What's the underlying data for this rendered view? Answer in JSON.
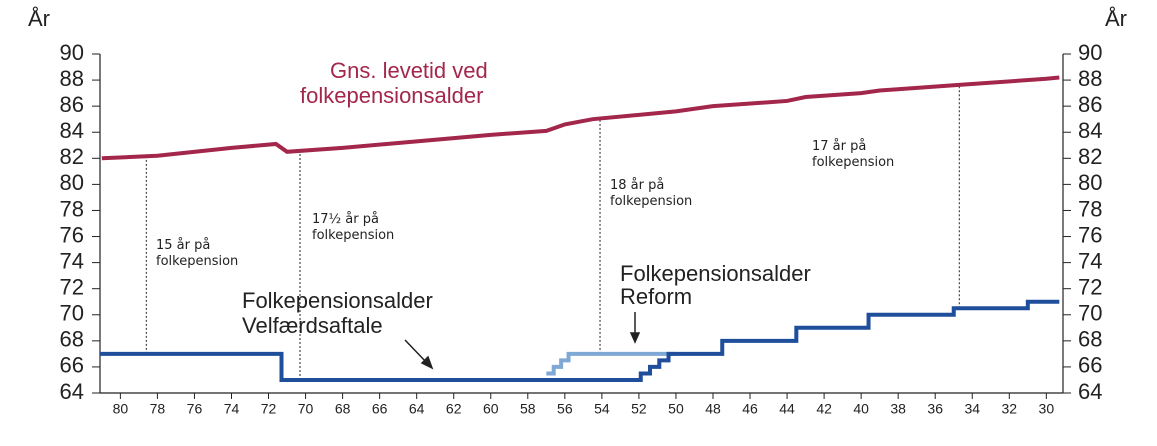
{
  "chart_data": {
    "type": "line",
    "y_label": "År",
    "xlim": [
      81.1,
      29.1
    ],
    "ylim": [
      64,
      90
    ],
    "xticks": [
      80,
      78,
      76,
      74,
      72,
      70,
      68,
      66,
      64,
      62,
      60,
      58,
      56,
      54,
      52,
      50,
      48,
      46,
      44,
      42,
      40,
      38,
      36,
      34,
      32,
      30
    ],
    "yticks": [
      64,
      66,
      68,
      70,
      72,
      74,
      76,
      78,
      80,
      82,
      84,
      86,
      88,
      90
    ],
    "series": [
      {
        "name": [
          "Gns. levetid ved",
          "folkepensionsalder"
        ],
        "color": "#a3264b",
        "x": [
          81,
          78,
          74,
          71.6,
          71,
          68,
          64,
          60,
          57,
          56,
          54.5,
          50,
          48,
          44,
          43,
          40,
          39,
          35,
          30,
          29.3
        ],
        "values": [
          82,
          82.2,
          82.8,
          83.1,
          82.5,
          82.8,
          83.3,
          83.8,
          84.1,
          84.6,
          85,
          85.6,
          86,
          86.4,
          86.7,
          87,
          87.2,
          87.6,
          88.1,
          88.2
        ]
      },
      {
        "name": [
          "Folkepensionsalder",
          "Reform"
        ],
        "color": "#7fa9d4",
        "x": [
          57,
          56.6,
          56.6,
          56.2,
          56.2,
          55.8,
          55.8,
          55.4,
          55.4,
          50
        ],
        "values": [
          65.5,
          65.5,
          66,
          66,
          66.5,
          66.5,
          67,
          67,
          67,
          67
        ]
      },
      {
        "name": [
          "Folkepensionsalder",
          "Velfærdsaftale"
        ],
        "color": "#1f4e9a",
        "x": [
          81.1,
          71.3,
          71.3,
          51.9,
          51.9,
          51.4,
          51.4,
          50.9,
          50.9,
          50.4,
          50.4,
          47.5,
          47.5,
          43.5,
          43.5,
          39.6,
          39.6,
          35,
          35,
          31,
          31,
          29.3
        ],
        "values": [
          67,
          67,
          65,
          65,
          65.5,
          65.5,
          66,
          66,
          66.5,
          66.5,
          67,
          67,
          68,
          68,
          69,
          69,
          70,
          70,
          70.5,
          70.5,
          71,
          71
        ]
      }
    ],
    "annotations": [
      [
        "15 år på",
        "folkepension"
      ],
      [
        "17½ år på",
        "folkepension"
      ],
      [
        "18 år på",
        "folkepension"
      ],
      [
        "17 år på",
        "folkepension"
      ]
    ],
    "vlines": [
      {
        "x": 78.6,
        "y": [
          67,
          82.2
        ]
      },
      {
        "x": 70.3,
        "y": [
          65,
          82.5
        ]
      },
      {
        "x": 54.1,
        "y": [
          67,
          85
        ]
      },
      {
        "x": 34.7,
        "y": [
          70.5,
          87.5
        ]
      }
    ]
  }
}
